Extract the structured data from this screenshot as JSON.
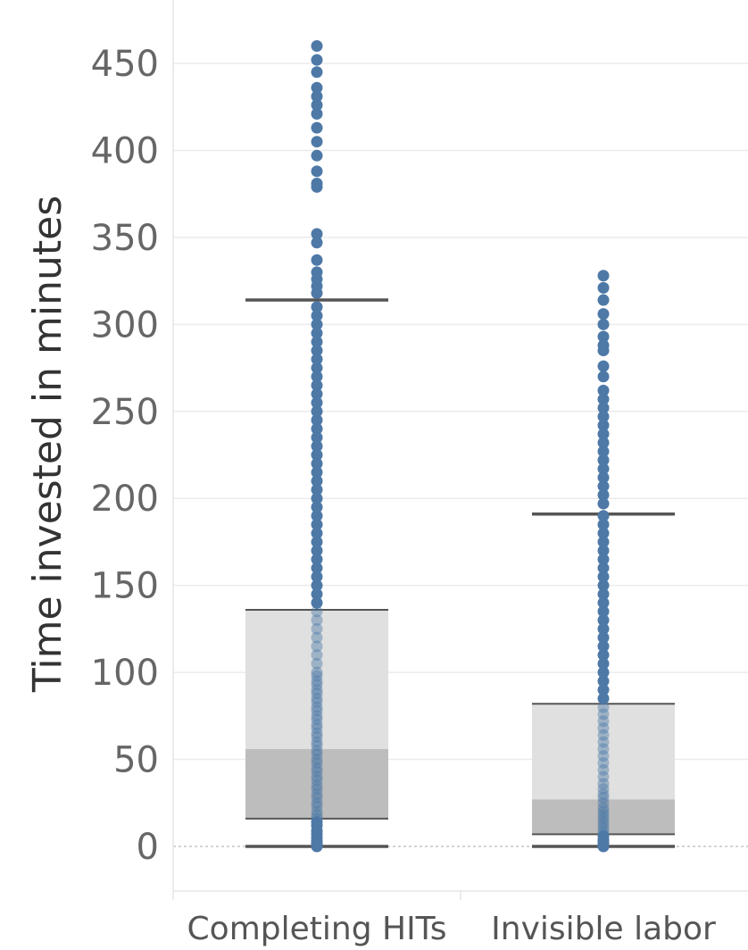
{
  "chart_data": {
    "type": "box",
    "title": "",
    "xlabel": "",
    "ylabel": "Time invested in minutes",
    "ylim": [
      -25,
      480
    ],
    "yticks": [
      0,
      50,
      100,
      150,
      200,
      250,
      300,
      350,
      400,
      450
    ],
    "grid": true,
    "colors": {
      "points": "#4e79a7",
      "box_upper": "#e0e0e0",
      "box_lower": "#bdbdbd",
      "whisker": "#555555",
      "gridline": "#ebebeb",
      "tick_text": "#666666"
    },
    "categories": [
      "Completing HITs",
      "Invisible labor"
    ],
    "boxes": [
      {
        "name": "Completing HITs",
        "whisker_low": 0,
        "q1": 16,
        "median": 56,
        "q3": 136,
        "whisker_high": 314,
        "points": [
          0,
          1,
          2,
          3,
          5,
          7,
          9,
          12,
          14,
          16,
          18,
          20,
          23,
          25,
          28,
          30,
          33,
          35,
          38,
          40,
          43,
          45,
          48,
          50,
          53,
          55,
          58,
          60,
          63,
          65,
          68,
          70,
          73,
          75,
          78,
          80,
          83,
          85,
          88,
          90,
          93,
          95,
          98,
          100,
          105,
          110,
          115,
          120,
          125,
          130,
          135,
          140,
          145,
          150,
          155,
          160,
          165,
          170,
          175,
          180,
          185,
          190,
          195,
          200,
          205,
          210,
          215,
          220,
          225,
          230,
          235,
          240,
          245,
          250,
          255,
          260,
          265,
          270,
          275,
          280,
          285,
          290,
          295,
          300,
          305,
          310,
          318,
          322,
          326,
          330,
          337,
          347,
          352,
          379,
          381,
          388,
          397,
          405,
          413,
          421,
          426,
          431,
          436,
          445,
          452,
          460
        ]
      },
      {
        "name": "Invisible labor",
        "whisker_low": 0,
        "q1": 7,
        "median": 27,
        "q3": 82,
        "whisker_high": 191,
        "points": [
          0,
          1,
          2,
          3,
          4,
          6,
          8,
          10,
          12,
          14,
          16,
          18,
          20,
          22,
          25,
          28,
          30,
          33,
          36,
          40,
          44,
          48,
          52,
          56,
          60,
          64,
          68,
          72,
          76,
          80,
          85,
          90,
          95,
          100,
          105,
          110,
          115,
          120,
          125,
          130,
          135,
          140,
          145,
          150,
          155,
          160,
          165,
          170,
          175,
          180,
          185,
          190,
          197,
          202,
          207,
          212,
          217,
          222,
          227,
          232,
          237,
          242,
          247,
          252,
          257,
          262,
          270,
          276,
          285,
          288,
          293,
          300,
          306,
          314,
          321,
          328
        ]
      }
    ]
  }
}
